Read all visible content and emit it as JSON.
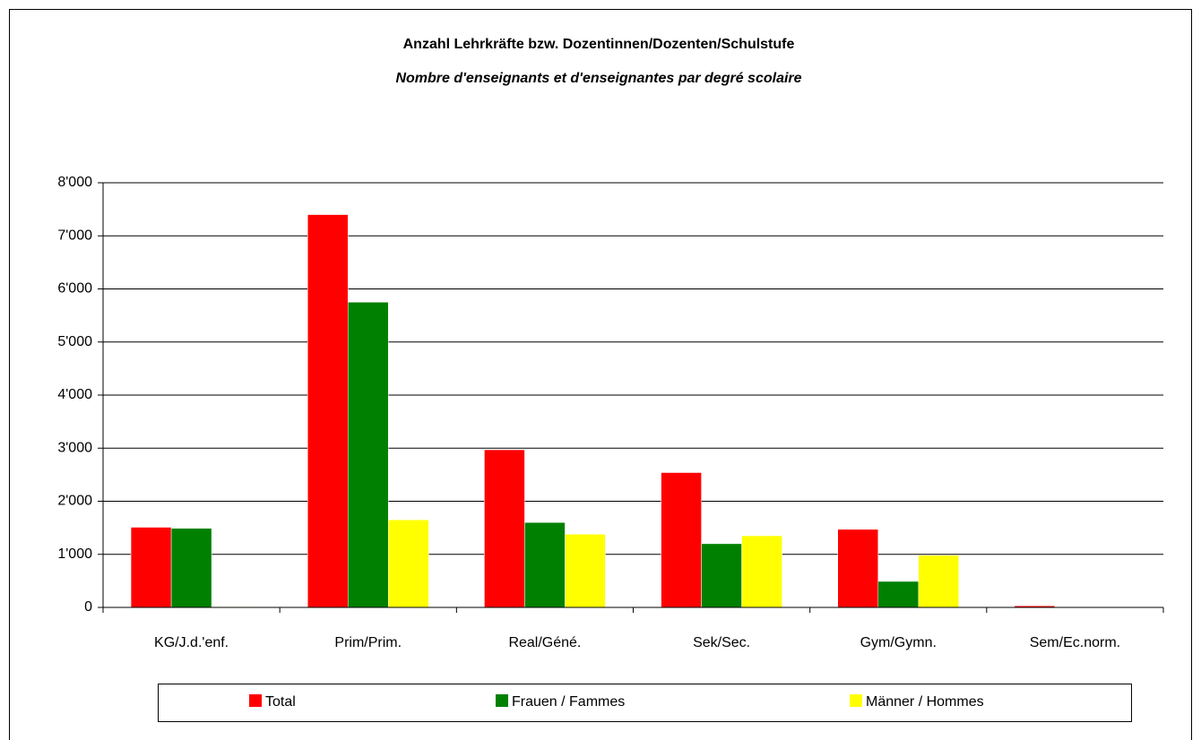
{
  "chart_data": {
    "type": "bar",
    "title": "Anzahl Lehrkräfte bzw. Dozentinnen/Dozenten/Schulstufe",
    "subtitle": "Nombre d'enseignants et d'enseignantes par degré scolaire",
    "categories": [
      "KG/J.d.'enf.",
      "Prim/Prim.",
      "Real/Géné.",
      "Sek/Sec.",
      "Gym/Gymn.",
      "Sem/Ec.norm."
    ],
    "series": [
      {
        "name": "Total",
        "color": "#ff0000",
        "values": [
          1510,
          7400,
          2970,
          2540,
          1470,
          30
        ]
      },
      {
        "name": "Frauen / Fammes",
        "color": "#008000",
        "values": [
          1490,
          5750,
          1600,
          1200,
          490,
          0
        ]
      },
      {
        "name": "Männer / Hommes",
        "color": "#ffff00",
        "values": [
          10,
          1650,
          1380,
          1350,
          980,
          0
        ]
      }
    ],
    "ylim": [
      0,
      8000
    ],
    "yticks": [
      0,
      {
        "value": 1000,
        "label": "1'000"
      },
      {
        "value": 2000,
        "label": "2'000"
      },
      {
        "value": 3000,
        "label": "3'000"
      },
      {
        "value": 4000,
        "label": "4'000"
      },
      {
        "value": 5000,
        "label": "5'000"
      },
      {
        "value": 6000,
        "label": "6'000"
      },
      {
        "value": 7000,
        "label": "7'000"
      },
      {
        "value": 8000,
        "label": "8'000"
      }
    ],
    "grid": true,
    "legend": "bottom"
  }
}
